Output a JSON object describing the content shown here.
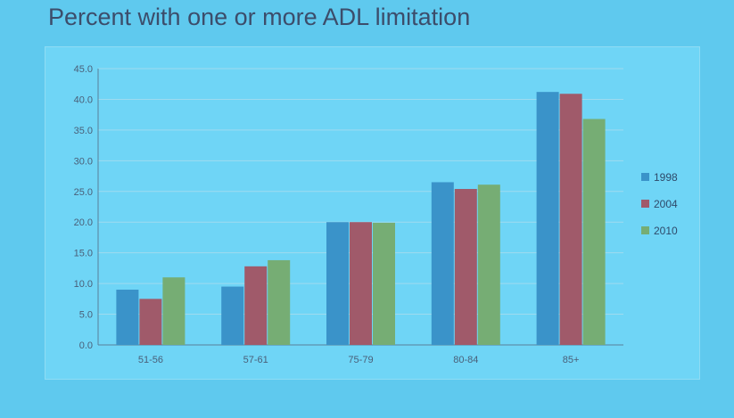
{
  "slide": {
    "title": "Percent with one or more ADL limitation"
  },
  "chart_data": {
    "type": "bar",
    "title": "Percent with one or more ADL limitation",
    "xlabel": "",
    "ylabel": "",
    "ylim": [
      0,
      45
    ],
    "yticks": [
      "0.0",
      "5.0",
      "10.0",
      "15.0",
      "20.0",
      "25.0",
      "30.0",
      "35.0",
      "40.0",
      "45.0"
    ],
    "categories": [
      "51-56",
      "57-61",
      "75-79",
      "80-84",
      "85+"
    ],
    "series": [
      {
        "name": "1998",
        "color": "#3a93c9",
        "values": [
          9.0,
          9.5,
          20.0,
          26.5,
          41.2
        ]
      },
      {
        "name": "2004",
        "color": "#a05a6a",
        "values": [
          7.5,
          12.8,
          20.0,
          25.4,
          40.9
        ]
      },
      {
        "name": "2010",
        "color": "#76ad74",
        "values": [
          11.0,
          13.8,
          19.9,
          26.1,
          36.8
        ]
      }
    ],
    "grid": true,
    "legend": "right"
  }
}
